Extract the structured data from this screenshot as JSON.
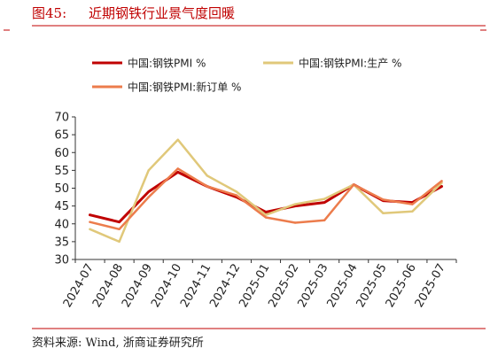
{
  "header": {
    "figure_label": "图45:",
    "title": "近期钢铁行业景气度回暖"
  },
  "footer": {
    "source": "资料来源: Wind, 浙商证券研究所"
  },
  "colors": {
    "accent": "#c00000",
    "rule": "#c00000",
    "axis": "#333333"
  },
  "chart_data": {
    "type": "line",
    "x": [
      "2024-07",
      "2024-08",
      "2024-09",
      "2024-10",
      "2024-11",
      "2024-12",
      "2025-01",
      "2025-02",
      "2025-03",
      "2025-04",
      "2025-05",
      "2025-06",
      "2025-07"
    ],
    "ylim": [
      30,
      70
    ],
    "yticks": [
      30,
      35,
      40,
      45,
      50,
      55,
      60,
      65,
      70
    ],
    "grid": false,
    "legend_position": "top",
    "series": [
      {
        "name": "中国:钢铁PMI %",
        "color": "#c00000",
        "width": 3,
        "values": [
          42.5,
          40.5,
          49.0,
          54.5,
          50.5,
          47.5,
          43.3,
          45.0,
          46.0,
          51.0,
          46.5,
          46.0,
          50.5
        ]
      },
      {
        "name": "中国:钢铁PMI:生产 %",
        "color": "#e0c87a",
        "width": 2.5,
        "values": [
          38.5,
          35.0,
          55.0,
          63.6,
          53.5,
          49.0,
          42.5,
          45.5,
          47.0,
          51.0,
          43.0,
          43.5,
          51.5
        ]
      },
      {
        "name": "中国:钢铁PMI:新订单 %",
        "color": "#ec7c4c",
        "width": 2.5,
        "values": [
          40.5,
          38.5,
          47.5,
          55.5,
          50.5,
          48.0,
          41.8,
          40.3,
          41.0,
          51.0,
          46.8,
          45.5,
          52.0
        ]
      }
    ]
  }
}
